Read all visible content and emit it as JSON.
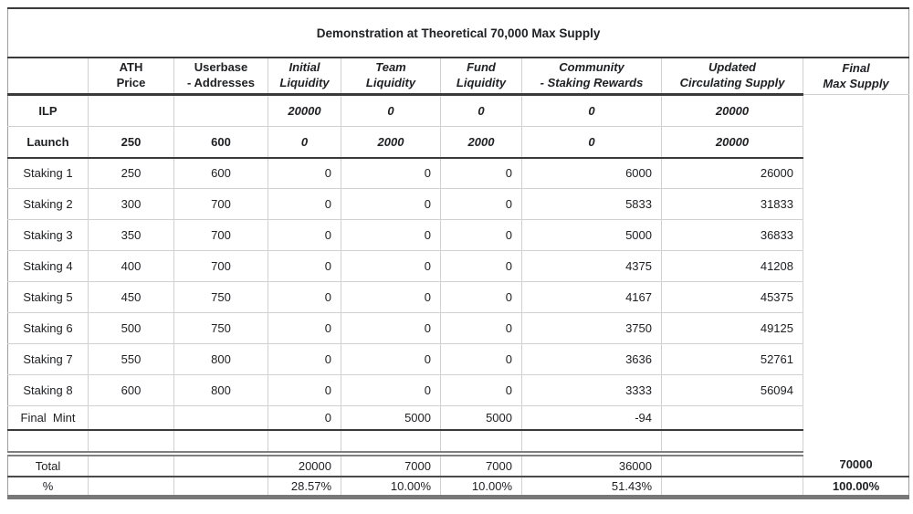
{
  "title": "Demonstration at Theoretical 70,000 Max Supply",
  "table": {
    "headers": [
      "",
      "ATH\nPrice",
      "Userbase\n- Addresses",
      "Initial\nLiquidity",
      "Team\nLiquidity",
      "Fund\nLiquidity",
      "Community\n- Staking Rewards",
      "Updated\nCirculating Supply",
      "Final\nMax Supply"
    ],
    "rows": [
      {
        "kind": "ilp",
        "label": "ILP",
        "cells": [
          "",
          "",
          "20000",
          "0",
          "0",
          "0",
          "20000"
        ],
        "final": ""
      },
      {
        "kind": "launch",
        "label": "Launch",
        "cells": [
          "250",
          "600",
          "0",
          "2000",
          "2000",
          "0",
          "20000"
        ],
        "final": ""
      },
      {
        "kind": "staking",
        "label": "Staking 1",
        "cells": [
          "250",
          "600",
          "0",
          "0",
          "0",
          "6000",
          "26000"
        ],
        "final": ""
      },
      {
        "kind": "staking",
        "label": "Staking 2",
        "cells": [
          "300",
          "700",
          "0",
          "0",
          "0",
          "5833",
          "31833"
        ],
        "final": ""
      },
      {
        "kind": "staking",
        "label": "Staking 3",
        "cells": [
          "350",
          "700",
          "0",
          "0",
          "0",
          "5000",
          "36833"
        ],
        "final": ""
      },
      {
        "kind": "staking",
        "label": "Staking 4",
        "cells": [
          "400",
          "700",
          "0",
          "0",
          "0",
          "4375",
          "41208"
        ],
        "final": ""
      },
      {
        "kind": "staking",
        "label": "Staking 5",
        "cells": [
          "450",
          "750",
          "0",
          "0",
          "0",
          "4167",
          "45375"
        ],
        "final": ""
      },
      {
        "kind": "staking",
        "label": "Staking 6",
        "cells": [
          "500",
          "750",
          "0",
          "0",
          "0",
          "3750",
          "49125"
        ],
        "final": ""
      },
      {
        "kind": "staking",
        "label": "Staking 7",
        "cells": [
          "550",
          "800",
          "0",
          "0",
          "0",
          "3636",
          "52761"
        ],
        "final": ""
      },
      {
        "kind": "staking",
        "label": "Staking 8",
        "cells": [
          "600",
          "800",
          "0",
          "0",
          "0",
          "3333",
          "56094"
        ],
        "final": ""
      },
      {
        "kind": "finalmint",
        "label": "Final  Mint",
        "cells": [
          "",
          "",
          "0",
          "5000",
          "5000",
          "-94",
          ""
        ],
        "final": ""
      },
      {
        "kind": "spacer",
        "label": "",
        "cells": [
          "",
          "",
          "",
          "",
          "",
          "",
          ""
        ],
        "final": ""
      },
      {
        "kind": "total",
        "label": "Total",
        "cells": [
          "",
          "",
          "20000",
          "7000",
          "7000",
          "36000",
          ""
        ],
        "final": "70000"
      },
      {
        "kind": "percent",
        "label": "%",
        "cells": [
          "",
          "",
          "28.57%",
          "10.00%",
          "10.00%",
          "51.43%",
          ""
        ],
        "final": "100.00%"
      }
    ]
  },
  "colors": {
    "text": "#202124",
    "grid_light": "#d0d0d0",
    "rule_dark": "#3a3a3a",
    "rule_double_gray": "#7f7f7f",
    "outer_bottom": "#787878",
    "background": "#ffffff"
  }
}
